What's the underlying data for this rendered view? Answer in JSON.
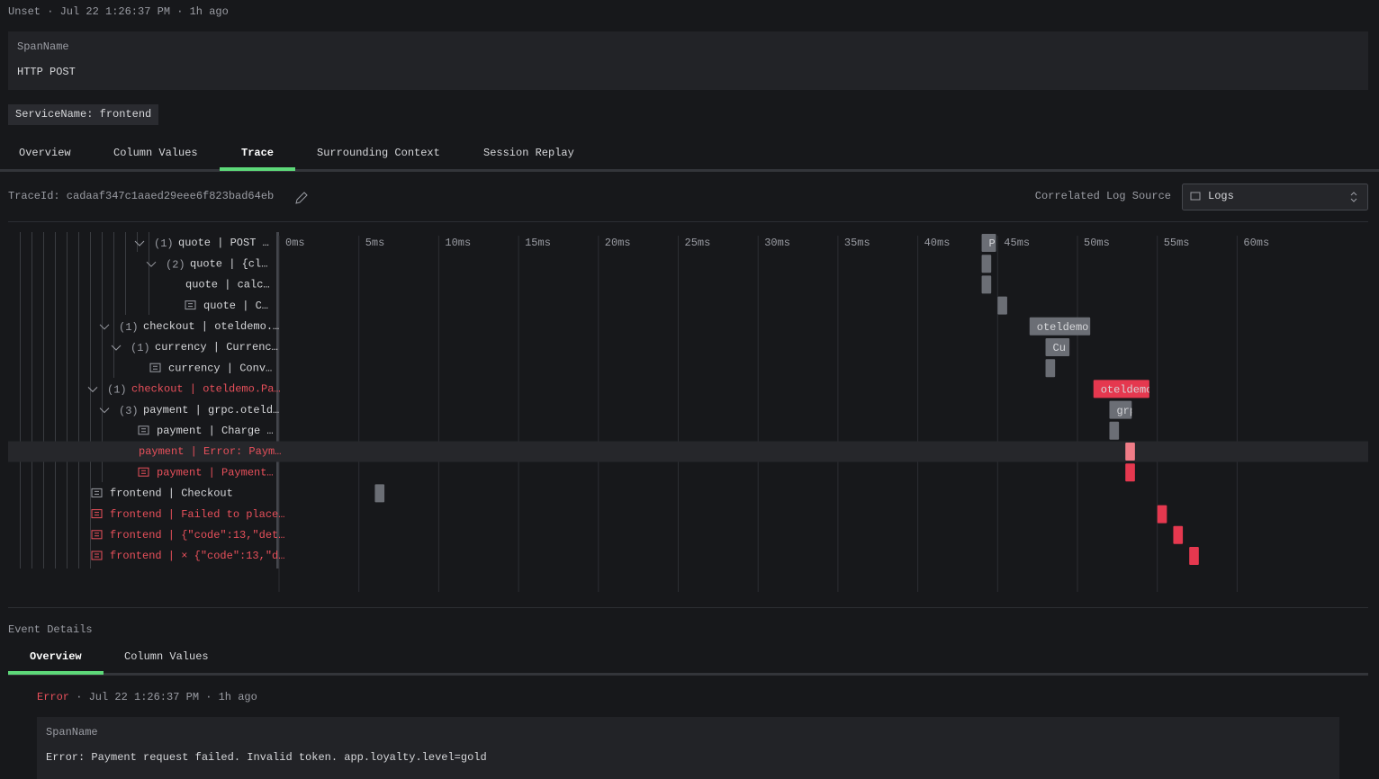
{
  "header": {
    "status": "Unset",
    "separator": "·",
    "timestamp": "Jul 22 1:26:37 PM",
    "relative_time": "1h ago"
  },
  "span_name": {
    "label": "SpanName",
    "value": "HTTP POST"
  },
  "service_tag": "ServiceName: frontend",
  "tabs": [
    "Overview",
    "Column Values",
    "Trace",
    "Surrounding Context",
    "Session Replay"
  ],
  "active_tab": 2,
  "trace": {
    "trace_id_label": "TraceId:",
    "trace_id": "cadaaf347c1aaed29eee6f823bad64eb",
    "log_source_label": "Correlated Log Source",
    "log_source": "Logs",
    "timeline": {
      "xlim": [
        0,
        68
      ],
      "ticks": [
        {
          "value": 0,
          "label": "0ms"
        },
        {
          "value": 5,
          "label": "5ms"
        },
        {
          "value": 10,
          "label": "10ms"
        },
        {
          "value": 15,
          "label": "15ms"
        },
        {
          "value": 20,
          "label": "20ms"
        },
        {
          "value": 25,
          "label": "25ms"
        },
        {
          "value": 30,
          "label": "30ms"
        },
        {
          "value": 35,
          "label": "35ms"
        },
        {
          "value": 40,
          "label": "40ms"
        },
        {
          "value": 45,
          "label": "45ms"
        },
        {
          "value": 50,
          "label": "50ms"
        },
        {
          "value": 55,
          "label": "55ms"
        },
        {
          "value": 60,
          "label": "60ms"
        }
      ]
    },
    "selected_row": 10,
    "spans": [
      {
        "count": "(1)",
        "label": "quote | POST …",
        "error": false,
        "log": false,
        "start": 44,
        "duration": 0.9,
        "bar_label": "P"
      },
      {
        "count": "(2)",
        "label": "quote | {cl…",
        "error": false,
        "log": false,
        "start": 44,
        "duration": 0.6
      },
      {
        "label": "quote | calc…",
        "error": false,
        "log": false,
        "start": 44,
        "duration": 0.6
      },
      {
        "label": "quote | C…",
        "error": false,
        "log": true,
        "start": 45,
        "duration": 0.6
      },
      {
        "count": "(1)",
        "label": "checkout | oteldemo.…",
        "error": false,
        "log": false,
        "start": 47,
        "duration": 3.8,
        "bar_label": "oteldemo."
      },
      {
        "count": "(1)",
        "label": "currency | Currenc…",
        "error": false,
        "log": false,
        "start": 48,
        "duration": 1.5,
        "bar_label": "Cu"
      },
      {
        "label": "currency | Conv…",
        "error": false,
        "log": true,
        "start": 48,
        "duration": 0.6
      },
      {
        "count": "(1)",
        "label": "checkout | oteldemo.Pa…",
        "error": true,
        "log": false,
        "start": 51,
        "duration": 3.5,
        "bar_label": "oteldemo"
      },
      {
        "count": "(3)",
        "label": "payment | grpc.oteld…",
        "error": false,
        "log": false,
        "start": 52,
        "duration": 1.4,
        "bar_label": "grp"
      },
      {
        "label": "payment | Charge …",
        "error": false,
        "log": true,
        "start": 52,
        "duration": 0.6
      },
      {
        "label": "payment | Error: Paym…",
        "error": true,
        "log": false,
        "start": 53,
        "duration": 0.6
      },
      {
        "label": "payment | Payment…",
        "error": true,
        "log": true,
        "start": 53,
        "duration": 0.6
      },
      {
        "label": "frontend | Checkout",
        "error": false,
        "log": true,
        "start": 6,
        "duration": 0.6
      },
      {
        "label": "frontend | Failed to place…",
        "error": true,
        "log": true,
        "start": 55,
        "duration": 0.6
      },
      {
        "label": "frontend | {\"code\":13,\"det…",
        "error": true,
        "log": true,
        "start": 56,
        "duration": 0.6
      },
      {
        "label": "frontend | × {\"code\":13,\"d…",
        "error": true,
        "log": true,
        "start": 57,
        "duration": 0.6
      }
    ]
  },
  "event_details": {
    "title": "Event Details",
    "tabs": [
      "Overview",
      "Column Values"
    ],
    "active_tab": 0,
    "status": "Error",
    "separator": "·",
    "timestamp": "Jul 22 1:26:37 PM",
    "relative_time": "1h ago",
    "span_name_label": "SpanName",
    "span_name": "Error: Payment request failed. Invalid token. app.loyalty.level=gold"
  }
}
